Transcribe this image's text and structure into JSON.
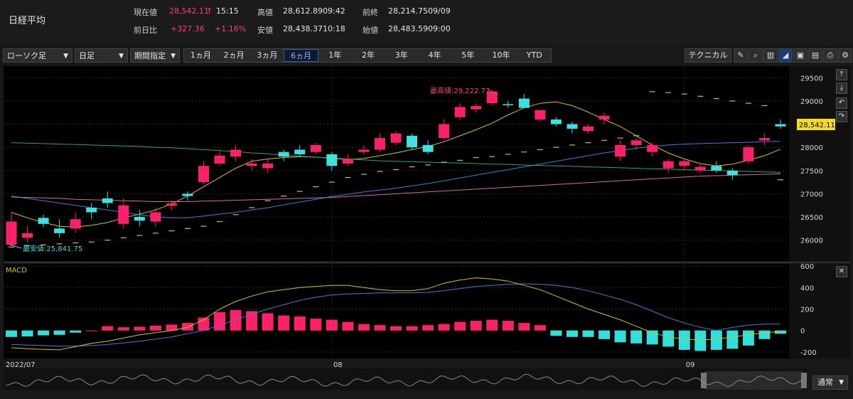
{
  "header": {
    "name": "日経平均",
    "quotes": [
      {
        "label": "現在値",
        "value": "28,542.11",
        "arrow": "↑",
        "extra": "15:15"
      },
      {
        "label": "前日比",
        "value": "+327.36",
        "extra": "+1.16%"
      },
      {
        "label": "高値",
        "value": "28,612.89",
        "extra": "09:42"
      },
      {
        "label": "安値",
        "value": "28,438.37",
        "extra": "10:18"
      },
      {
        "label": "前終",
        "value": "28,214.75",
        "extra": "09/09"
      },
      {
        "label": "始値",
        "value": "28,483.59",
        "extra": "09:00"
      }
    ]
  },
  "toolbar": {
    "chart_type": "ローソク足",
    "interval": "日足",
    "range_mode": "期間指定",
    "periods": [
      "1ヵ月",
      "2ヵ月",
      "3ヵ月",
      "6ヵ月",
      "1年",
      "2年",
      "3年",
      "4年",
      "5年",
      "10年",
      "YTD"
    ],
    "active_period": "6ヵ月",
    "technical": "テクニカル"
  },
  "chart_data": {
    "type": "candlestick",
    "x_labels": [
      "2022/07",
      "08",
      "09"
    ],
    "price_ticks": [
      26000,
      26500,
      27000,
      27500,
      28000,
      28500,
      29000,
      29500
    ],
    "price_range": [
      25550,
      29750
    ],
    "last_price_label": "28,542.11",
    "max_annotation": "最高値:29,222.77",
    "min_annotation": "最安値:25,841.75",
    "candles": [
      [
        26400,
        25900,
        26600,
        25840
      ],
      [
        26150,
        26050,
        26300,
        25950
      ],
      [
        26350,
        26480,
        26550,
        26280
      ],
      [
        26150,
        26250,
        26450,
        26050
      ],
      [
        26450,
        26250,
        26600,
        26150
      ],
      [
        26600,
        26700,
        26800,
        26450
      ],
      [
        26800,
        26900,
        27050,
        26700
      ],
      [
        26750,
        26350,
        26900,
        26250
      ],
      [
        26420,
        26500,
        26650,
        26300
      ],
      [
        26600,
        26400,
        26700,
        26300
      ],
      [
        26790,
        26740,
        26850,
        26650
      ],
      [
        26950,
        27000,
        27050,
        26850
      ],
      [
        27600,
        27250,
        27700,
        27200
      ],
      [
        27820,
        27650,
        27950,
        27600
      ],
      [
        27950,
        27800,
        28050,
        27700
      ],
      [
        27650,
        27600,
        27750,
        27500
      ],
      [
        27650,
        27550,
        27750,
        27450
      ],
      [
        27800,
        27900,
        27950,
        27700
      ],
      [
        27850,
        27950,
        28050,
        27800
      ],
      [
        28050,
        27900,
        28100,
        27850
      ],
      [
        27600,
        27850,
        27900,
        27500
      ],
      [
        27750,
        27650,
        27850,
        27600
      ],
      [
        27950,
        27900,
        28050,
        27850
      ],
      [
        28200,
        27950,
        28300,
        27900
      ],
      [
        28300,
        28100,
        28350,
        28050
      ],
      [
        28000,
        28250,
        28300,
        27950
      ],
      [
        27900,
        28050,
        28150,
        27850
      ],
      [
        28500,
        28200,
        28600,
        28150
      ],
      [
        28870,
        28650,
        28950,
        28600
      ],
      [
        28890,
        28820,
        28950,
        28750
      ],
      [
        29200,
        28950,
        29230,
        28900
      ],
      [
        28930,
        28930,
        29000,
        28850
      ],
      [
        28850,
        29050,
        29150,
        28850
      ],
      [
        28800,
        28600,
        28800,
        28550
      ],
      [
        28500,
        28600,
        28650,
        28450
      ],
      [
        28400,
        28500,
        28550,
        28300
      ],
      [
        28450,
        28350,
        28500,
        28300
      ],
      [
        28680,
        28600,
        28750,
        28500
      ],
      [
        28050,
        27800,
        28150,
        27700
      ],
      [
        28150,
        28050,
        28200,
        27950
      ],
      [
        28050,
        27900,
        28100,
        27800
      ],
      [
        27700,
        27550,
        27750,
        27450
      ],
      [
        27700,
        27600,
        27750,
        27500
      ],
      [
        27580,
        27500,
        27650,
        27450
      ],
      [
        27500,
        27600,
        27700,
        27450
      ],
      [
        27400,
        27500,
        27550,
        27300
      ],
      [
        28000,
        27700,
        28050,
        27650
      ],
      [
        28200,
        28150,
        28300,
        28050
      ],
      [
        28450,
        28500,
        28600,
        28400
      ]
    ],
    "series": [
      {
        "kind": "ma",
        "color": "#d4c21f",
        "values": [
          26600,
          26480,
          26380,
          26300,
          26280,
          26320,
          26380,
          26480,
          26560,
          26650,
          26780,
          26950,
          27150,
          27350,
          27550,
          27700,
          27750,
          27780,
          27800,
          27790,
          27760,
          27740,
          27760,
          27820,
          27880,
          27950,
          28020,
          28120,
          28250,
          28380,
          28520,
          28700,
          28850,
          28950,
          28980,
          28900,
          28760,
          28600,
          28450,
          28250,
          28050,
          27880,
          27750,
          27650,
          27600,
          27640,
          27720,
          27820,
          27960
        ]
      },
      {
        "kind": "ma",
        "color": "#3d7ed8",
        "values": [
          26950,
          26900,
          26850,
          26800,
          26750,
          26700,
          26650,
          26600,
          26550,
          26500,
          26480,
          26480,
          26520,
          26560,
          26600,
          26650,
          26700,
          26760,
          26820,
          26880,
          26940,
          26990,
          27040,
          27080,
          27120,
          27170,
          27220,
          27280,
          27340,
          27400,
          27460,
          27520,
          27580,
          27640,
          27700,
          27760,
          27820,
          27880,
          27930,
          27980,
          28020,
          28050,
          28070,
          28080,
          28090,
          28100,
          28110,
          28120,
          28130
        ]
      },
      {
        "kind": "ma",
        "color": "#2aa083",
        "values": [
          28100,
          28090,
          28080,
          28070,
          28060,
          28050,
          28040,
          28030,
          28020,
          28000,
          27990,
          27970,
          27950,
          27930,
          27910,
          27880,
          27860,
          27830,
          27810,
          27790,
          27770,
          27750,
          27730,
          27710,
          27700,
          27690,
          27680,
          27670,
          27660,
          27650,
          27640,
          27630,
          27620,
          27610,
          27600,
          27590,
          27580,
          27570,
          27560,
          27550,
          27540,
          27530,
          27520,
          27510,
          27500,
          27490,
          27480,
          27470,
          27460
        ]
      },
      {
        "kind": "ma",
        "color": "#d46ba0",
        "values": [
          26930,
          26920,
          26910,
          26900,
          26880,
          26870,
          26860,
          26850,
          26840,
          26830,
          26830,
          26830,
          26840,
          26850,
          26860,
          26870,
          26880,
          26890,
          26900,
          26910,
          26920,
          26940,
          26960,
          26980,
          27000,
          27020,
          27040,
          27060,
          27080,
          27100,
          27120,
          27140,
          27160,
          27180,
          27200,
          27220,
          27240,
          27260,
          27280,
          27300,
          27320,
          27340,
          27360,
          27380,
          27390,
          27400,
          27410,
          27420,
          27430
        ]
      },
      {
        "kind": "dashed",
        "color": "#d4c21f",
        "values": [
          25850,
          25880,
          25900,
          25920,
          25940,
          25960,
          26000,
          26050,
          26100,
          26150,
          26200,
          26250,
          26300,
          26400,
          26550,
          26700,
          26850,
          26950,
          27050,
          27150,
          27250,
          27350,
          27420,
          27480,
          27520,
          27580,
          27620,
          27680,
          27720,
          27780,
          27800,
          27850,
          27900,
          27950,
          28000,
          28050,
          28100,
          28150,
          28200,
          28250,
          29200,
          29180,
          29150,
          29100,
          29050,
          29000,
          28950,
          28900,
          27300
        ]
      }
    ],
    "macd": {
      "label": "MACD",
      "ticks": [
        -200,
        0,
        200,
        400,
        600
      ],
      "range": [
        -260,
        620
      ],
      "macd": [
        -160,
        -170,
        -175,
        -180,
        -150,
        -120,
        -100,
        -70,
        -40,
        -20,
        0,
        30,
        100,
        200,
        270,
        320,
        360,
        380,
        400,
        410,
        420,
        420,
        400,
        380,
        370,
        370,
        390,
        440,
        470,
        490,
        480,
        460,
        420,
        380,
        320,
        260,
        200,
        150,
        100,
        40,
        -20,
        -60,
        -80,
        -90,
        -80,
        -60,
        -40,
        -20,
        -10
      ],
      "signal": [
        -130,
        -135,
        -140,
        -145,
        -145,
        -140,
        -130,
        -115,
        -100,
        -80,
        -60,
        -30,
        0,
        50,
        100,
        150,
        200,
        240,
        280,
        310,
        330,
        340,
        345,
        350,
        350,
        350,
        355,
        370,
        390,
        410,
        420,
        430,
        435,
        430,
        420,
        400,
        370,
        330,
        290,
        240,
        180,
        120,
        70,
        30,
        0,
        30,
        50,
        60,
        60
      ],
      "histogram": [
        -60,
        -55,
        -45,
        -40,
        -20,
        0,
        40,
        30,
        35,
        45,
        55,
        70,
        120,
        170,
        190,
        180,
        160,
        140,
        130,
        110,
        100,
        80,
        60,
        50,
        40,
        40,
        50,
        60,
        80,
        90,
        100,
        90,
        70,
        50,
        -50,
        -60,
        -60,
        -80,
        -110,
        -120,
        -130,
        -150,
        -180,
        -190,
        -180,
        -170,
        -140,
        -80,
        -30
      ]
    },
    "nav_label": "通常"
  }
}
